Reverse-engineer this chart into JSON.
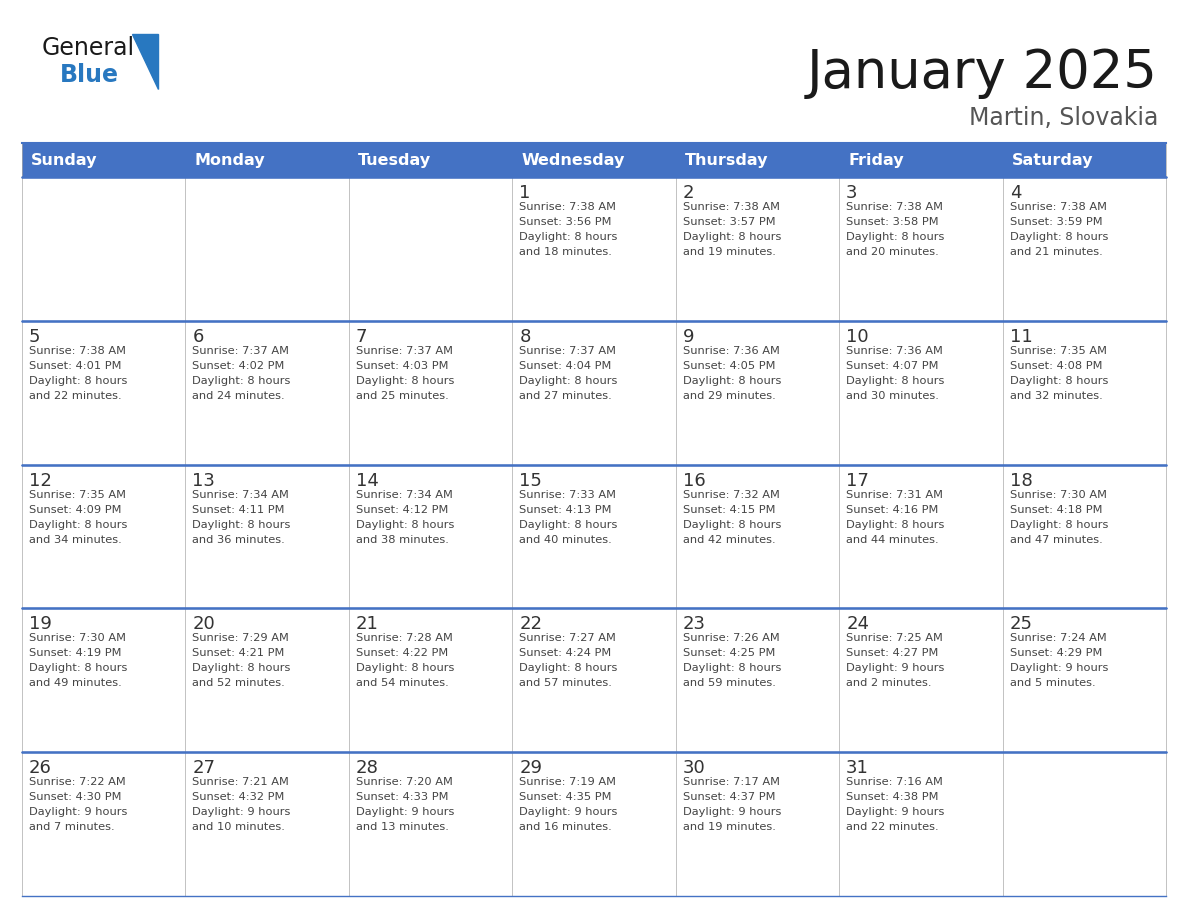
{
  "title": "January 2025",
  "subtitle": "Martin, Slovakia",
  "days_of_week": [
    "Sunday",
    "Monday",
    "Tuesday",
    "Wednesday",
    "Thursday",
    "Friday",
    "Saturday"
  ],
  "header_bg": "#4472C4",
  "header_text": "#FFFFFF",
  "border_color_blue": "#4472C4",
  "border_color_light": "#AAAAAA",
  "day_num_color": "#333333",
  "text_color": "#444444",
  "title_color": "#1a1a1a",
  "subtitle_color": "#555555",
  "logo_general_color": "#1a1a1a",
  "logo_blue_color": "#2878C0",
  "logo_triangle_color": "#2878C0",
  "calendar_data": [
    [
      {
        "day": "",
        "sunrise": "",
        "sunset": "",
        "daylight": ""
      },
      {
        "day": "",
        "sunrise": "",
        "sunset": "",
        "daylight": ""
      },
      {
        "day": "",
        "sunrise": "",
        "sunset": "",
        "daylight": ""
      },
      {
        "day": "1",
        "sunrise": "7:38 AM",
        "sunset": "3:56 PM",
        "daylight": "8 hours and 18 minutes."
      },
      {
        "day": "2",
        "sunrise": "7:38 AM",
        "sunset": "3:57 PM",
        "daylight": "8 hours and 19 minutes."
      },
      {
        "day": "3",
        "sunrise": "7:38 AM",
        "sunset": "3:58 PM",
        "daylight": "8 hours and 20 minutes."
      },
      {
        "day": "4",
        "sunrise": "7:38 AM",
        "sunset": "3:59 PM",
        "daylight": "8 hours and 21 minutes."
      }
    ],
    [
      {
        "day": "5",
        "sunrise": "7:38 AM",
        "sunset": "4:01 PM",
        "daylight": "8 hours and 22 minutes."
      },
      {
        "day": "6",
        "sunrise": "7:37 AM",
        "sunset": "4:02 PM",
        "daylight": "8 hours and 24 minutes."
      },
      {
        "day": "7",
        "sunrise": "7:37 AM",
        "sunset": "4:03 PM",
        "daylight": "8 hours and 25 minutes."
      },
      {
        "day": "8",
        "sunrise": "7:37 AM",
        "sunset": "4:04 PM",
        "daylight": "8 hours and 27 minutes."
      },
      {
        "day": "9",
        "sunrise": "7:36 AM",
        "sunset": "4:05 PM",
        "daylight": "8 hours and 29 minutes."
      },
      {
        "day": "10",
        "sunrise": "7:36 AM",
        "sunset": "4:07 PM",
        "daylight": "8 hours and 30 minutes."
      },
      {
        "day": "11",
        "sunrise": "7:35 AM",
        "sunset": "4:08 PM",
        "daylight": "8 hours and 32 minutes."
      }
    ],
    [
      {
        "day": "12",
        "sunrise": "7:35 AM",
        "sunset": "4:09 PM",
        "daylight": "8 hours and 34 minutes."
      },
      {
        "day": "13",
        "sunrise": "7:34 AM",
        "sunset": "4:11 PM",
        "daylight": "8 hours and 36 minutes."
      },
      {
        "day": "14",
        "sunrise": "7:34 AM",
        "sunset": "4:12 PM",
        "daylight": "8 hours and 38 minutes."
      },
      {
        "day": "15",
        "sunrise": "7:33 AM",
        "sunset": "4:13 PM",
        "daylight": "8 hours and 40 minutes."
      },
      {
        "day": "16",
        "sunrise": "7:32 AM",
        "sunset": "4:15 PM",
        "daylight": "8 hours and 42 minutes."
      },
      {
        "day": "17",
        "sunrise": "7:31 AM",
        "sunset": "4:16 PM",
        "daylight": "8 hours and 44 minutes."
      },
      {
        "day": "18",
        "sunrise": "7:30 AM",
        "sunset": "4:18 PM",
        "daylight": "8 hours and 47 minutes."
      }
    ],
    [
      {
        "day": "19",
        "sunrise": "7:30 AM",
        "sunset": "4:19 PM",
        "daylight": "8 hours and 49 minutes."
      },
      {
        "day": "20",
        "sunrise": "7:29 AM",
        "sunset": "4:21 PM",
        "daylight": "8 hours and 52 minutes."
      },
      {
        "day": "21",
        "sunrise": "7:28 AM",
        "sunset": "4:22 PM",
        "daylight": "8 hours and 54 minutes."
      },
      {
        "day": "22",
        "sunrise": "7:27 AM",
        "sunset": "4:24 PM",
        "daylight": "8 hours and 57 minutes."
      },
      {
        "day": "23",
        "sunrise": "7:26 AM",
        "sunset": "4:25 PM",
        "daylight": "8 hours and 59 minutes."
      },
      {
        "day": "24",
        "sunrise": "7:25 AM",
        "sunset": "4:27 PM",
        "daylight": "9 hours and 2 minutes."
      },
      {
        "day": "25",
        "sunrise": "7:24 AM",
        "sunset": "4:29 PM",
        "daylight": "9 hours and 5 minutes."
      }
    ],
    [
      {
        "day": "26",
        "sunrise": "7:22 AM",
        "sunset": "4:30 PM",
        "daylight": "9 hours and 7 minutes."
      },
      {
        "day": "27",
        "sunrise": "7:21 AM",
        "sunset": "4:32 PM",
        "daylight": "9 hours and 10 minutes."
      },
      {
        "day": "28",
        "sunrise": "7:20 AM",
        "sunset": "4:33 PM",
        "daylight": "9 hours and 13 minutes."
      },
      {
        "day": "29",
        "sunrise": "7:19 AM",
        "sunset": "4:35 PM",
        "daylight": "9 hours and 16 minutes."
      },
      {
        "day": "30",
        "sunrise": "7:17 AM",
        "sunset": "4:37 PM",
        "daylight": "9 hours and 19 minutes."
      },
      {
        "day": "31",
        "sunrise": "7:16 AM",
        "sunset": "4:38 PM",
        "daylight": "9 hours and 22 minutes."
      },
      {
        "day": "",
        "sunrise": "",
        "sunset": "",
        "daylight": ""
      }
    ]
  ]
}
